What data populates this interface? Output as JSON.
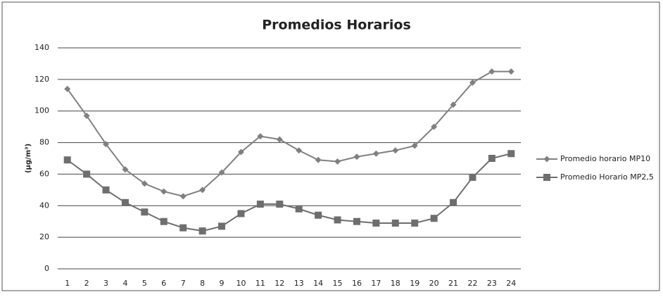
{
  "chart_data": {
    "type": "line",
    "title": "Promedios Horarios",
    "y_label": "(µg/m³)",
    "categories": [
      "1",
      "2",
      "3",
      "4",
      "5",
      "6",
      "7",
      "8",
      "9",
      "10",
      "11",
      "12",
      "13",
      "14",
      "15",
      "16",
      "17",
      "18",
      "19",
      "20",
      "21",
      "22",
      "23",
      "24"
    ],
    "series": [
      {
        "name": "Promedio horario MP10",
        "color": "#808080",
        "marker": "diamond",
        "values": [
          114,
          97,
          79,
          63,
          54,
          49,
          46,
          50,
          61,
          74,
          84,
          82,
          75,
          69,
          68,
          71,
          73,
          75,
          78,
          90,
          104,
          118,
          125,
          125
        ]
      },
      {
        "name": "Promedio Horario MP2,5",
        "color": "#6e6e6e",
        "marker": "square",
        "values": [
          69,
          60,
          50,
          42,
          36,
          30,
          26,
          24,
          27,
          35,
          41,
          41,
          38,
          34,
          31,
          30,
          29,
          29,
          29,
          32,
          42,
          58,
          70,
          73
        ]
      }
    ],
    "ylim": [
      0,
      140
    ],
    "yticks": [
      0,
      20,
      40,
      60,
      80,
      100,
      120,
      140
    ],
    "grid": true,
    "legend": "right"
  }
}
